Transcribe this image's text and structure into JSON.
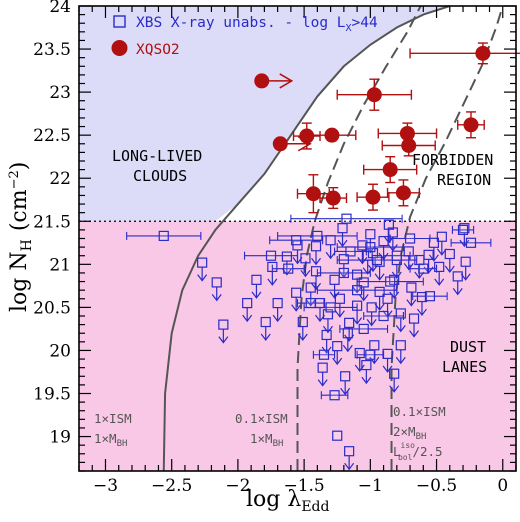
{
  "chart_data": {
    "type": "scatter",
    "xlabel": "log λ",
    "xlabel_sub": "Edd",
    "ylabel": "log N",
    "ylabel_sub": "H",
    "ylabel_unit": "(cm",
    "ylabel_unit_sup": "−2",
    "ylabel_unit_close": ")",
    "xlim": [
      -3.2,
      0.1
    ],
    "ylim": [
      18.6,
      24.0
    ],
    "x_ticks": [
      -3,
      -2.5,
      -2,
      -1.5,
      -1,
      -0.5,
      0
    ],
    "x_tick_labels": [
      "−3",
      "−2.5",
      "−2",
      "−1.5",
      "−1",
      "−0.5",
      "0"
    ],
    "y_ticks": [
      19,
      19.5,
      20,
      20.5,
      21,
      21.5,
      22,
      22.5,
      23,
      23.5,
      24
    ],
    "y_tick_labels": [
      "19",
      "19.5",
      "20",
      "20.5",
      "21",
      "21.5",
      "22",
      "22.5",
      "23",
      "23.5",
      "24"
    ],
    "threshold_nh": 21.5,
    "colors": {
      "upper_region": "#dcdcf8",
      "lower_region": "#f8c8e6",
      "xbs": "#2b2bc8",
      "xqso2": "#b01010",
      "curve": "#555555"
    },
    "legend": {
      "xbs_prefix": "XBS X-ray unabs. - log L",
      "xbs_sub": "X",
      "xbs_suffix": ">44",
      "xqso2": "XQSO2"
    },
    "regions": {
      "long_lived_1": "LONG-LIVED",
      "long_lived_2": "CLOUDS",
      "forbidden_1": "FORBIDDEN",
      "forbidden_2": "REGION",
      "dust_1": "DUST",
      "dust_2": "LANES"
    },
    "curve_labels": {
      "solid_1": "1×ISM",
      "solid_2": "1×M",
      "solid_2_sub": "BH",
      "dash1_1": "0.1×ISM",
      "dash1_2": "1×M",
      "dash1_2_sub": "BH",
      "dash2_1": "0.1×ISM",
      "dash2_2": "2×M",
      "dash2_2_sub": "BH",
      "dash2_3": "L",
      "dash2_3_sup": "iso",
      "dash2_3_sub": "bol",
      "dash2_3_suffix": "/2.5"
    },
    "curves": {
      "solid": [
        [
          -2.56,
          18.6
        ],
        [
          -2.55,
          19.5
        ],
        [
          -2.5,
          20.2
        ],
        [
          -2.42,
          20.7
        ],
        [
          -2.3,
          21.1
        ],
        [
          -2.17,
          21.4
        ],
        [
          -2.0,
          21.7
        ],
        [
          -1.8,
          22.05
        ],
        [
          -1.6,
          22.5
        ],
        [
          -1.4,
          22.95
        ],
        [
          -1.2,
          23.3
        ],
        [
          -1.0,
          23.55
        ],
        [
          -0.8,
          23.75
        ],
        [
          -0.6,
          23.9
        ],
        [
          -0.4,
          24.0
        ]
      ],
      "dashed_1": [
        [
          -1.55,
          18.6
        ],
        [
          -1.55,
          19.8
        ],
        [
          -1.52,
          20.6
        ],
        [
          -1.48,
          21.1
        ],
        [
          -1.42,
          21.5
        ],
        [
          -1.32,
          21.95
        ],
        [
          -1.2,
          22.4
        ],
        [
          -1.05,
          22.85
        ],
        [
          -0.88,
          23.3
        ],
        [
          -0.72,
          23.7
        ],
        [
          -0.62,
          24.0
        ]
      ],
      "dashed_2": [
        [
          -0.84,
          18.6
        ],
        [
          -0.84,
          19.8
        ],
        [
          -0.81,
          20.6
        ],
        [
          -0.77,
          21.1
        ],
        [
          -0.7,
          21.55
        ],
        [
          -0.58,
          22.0
        ],
        [
          -0.44,
          22.4
        ],
        [
          -0.3,
          22.85
        ],
        [
          -0.16,
          23.3
        ],
        [
          -0.05,
          23.75
        ],
        [
          0.0,
          24.0
        ]
      ]
    },
    "xqso2_points": [
      {
        "x": -1.82,
        "y": 23.13,
        "lim": "right"
      },
      {
        "x": -1.68,
        "y": 22.4,
        "lim": "right"
      },
      {
        "x": -1.48,
        "y": 22.49,
        "xerr": 0.1,
        "yerr": 0.15
      },
      {
        "x": -1.29,
        "y": 22.5,
        "xerr": 0.18,
        "yerr": 0.05
      },
      {
        "x": -0.97,
        "y": 22.97,
        "xerr": 0.28,
        "yerr": 0.18
      },
      {
        "x": -0.72,
        "y": 22.52,
        "xerr": 0.22,
        "yerr": 0.12
      },
      {
        "x": -0.71,
        "y": 22.38,
        "xerr": 0.2,
        "yerr": 0.12
      },
      {
        "x": -0.85,
        "y": 22.1,
        "xerr": 0.2,
        "yerr": 0.15
      },
      {
        "x": -0.98,
        "y": 21.78,
        "xerr": 0.12,
        "yerr": 0.15
      },
      {
        "x": -0.75,
        "y": 21.83,
        "xerr": 0.12,
        "yerr": 0.15
      },
      {
        "x": -1.43,
        "y": 21.82,
        "xerr": 0.12,
        "yerr": 0.22
      },
      {
        "x": -1.28,
        "y": 21.77,
        "xerr": 0.1,
        "yerr": 0.12
      },
      {
        "x": -0.15,
        "y": 23.45,
        "xerr": 0.55,
        "yerr": 0.12
      },
      {
        "x": -0.24,
        "y": 22.62,
        "xerr": 0.1,
        "yerr": 0.15
      }
    ],
    "xbs_points": [
      {
        "x": -2.56,
        "y": 21.33,
        "xerr": 0.28
      },
      {
        "x": -1.18,
        "y": 21.53,
        "xerr": 0.42
      },
      {
        "x": -1.56,
        "y": 21.28,
        "xerr": 0.2
      },
      {
        "x": -1.4,
        "y": 21.33,
        "xerr": 0.3
      },
      {
        "x": -0.55,
        "y": 20.63,
        "xerr": 0.13
      },
      {
        "x": -1.27,
        "y": 19.48,
        "xerr": 0.1
      },
      {
        "x": -0.24,
        "y": 21.25,
        "xerr": 0.15
      },
      {
        "x": -0.3,
        "y": 21.4,
        "xerr": 0.08
      },
      {
        "x": -1.0,
        "y": 21.2,
        "xerr": 0.25
      },
      {
        "x": -0.95,
        "y": 21.05,
        "xerr": 0.3
      },
      {
        "x": -1.2,
        "y": 20.9,
        "xerr": 0.2
      },
      {
        "x": -0.85,
        "y": 20.8,
        "xerr": 0.25
      },
      {
        "x": -1.1,
        "y": 20.7,
        "xerr": 0.3
      },
      {
        "x": -1.3,
        "y": 20.5,
        "xerr": 0.2
      },
      {
        "x": -0.9,
        "y": 20.4,
        "xerr": 0.15
      },
      {
        "x": -1.05,
        "y": 20.25,
        "xerr": 0.18
      },
      {
        "x": -1.75,
        "y": 21.1,
        "xerr": 0.2
      },
      {
        "x": -0.7,
        "y": 21.3,
        "xerr": 0.15
      },
      {
        "x": -1.25,
        "y": 19.01,
        "xerr": 0.0
      },
      {
        "x": -1.62,
        "y": 20.95,
        "xerr": 0.12
      },
      {
        "x": -1.45,
        "y": 20.55,
        "xerr": 0.1
      },
      {
        "x": -0.6,
        "y": 20.95,
        "xerr": 0.1
      },
      {
        "x": -1.0,
        "y": 19.95,
        "xerr": 0.1
      },
      {
        "x": -1.35,
        "y": 19.95,
        "xerr": 0.08
      },
      {
        "x": -1.15,
        "y": 21.15,
        "xerr": 0.12
      },
      {
        "x": -0.8,
        "y": 21.1,
        "xerr": 0.1
      }
    ],
    "xbs_upper_limits": [
      {
        "x": -1.74,
        "y": 20.97
      },
      {
        "x": -1.63,
        "y": 21.09
      },
      {
        "x": -1.49,
        "y": 21.07
      },
      {
        "x": -1.41,
        "y": 20.92
      },
      {
        "x": -1.41,
        "y": 21.21
      },
      {
        "x": -1.3,
        "y": 21.28
      },
      {
        "x": -1.21,
        "y": 21.42
      },
      {
        "x": -1.2,
        "y": 21.06
      },
      {
        "x": -1.1,
        "y": 20.88
      },
      {
        "x": -1.02,
        "y": 21.1
      },
      {
        "x": -0.98,
        "y": 21.13
      },
      {
        "x": -0.93,
        "y": 21.03
      },
      {
        "x": -0.9,
        "y": 21.27
      },
      {
        "x": -0.83,
        "y": 21.37
      },
      {
        "x": -0.8,
        "y": 21.05
      },
      {
        "x": -0.71,
        "y": 21.15
      },
      {
        "x": -0.63,
        "y": 21.05
      },
      {
        "x": -0.56,
        "y": 21.11
      },
      {
        "x": -0.48,
        "y": 20.97
      },
      {
        "x": -0.29,
        "y": 21.42
      },
      {
        "x": -0.34,
        "y": 20.86
      },
      {
        "x": -1.7,
        "y": 20.55
      },
      {
        "x": -1.56,
        "y": 20.67
      },
      {
        "x": -1.51,
        "y": 20.33
      },
      {
        "x": -1.45,
        "y": 20.73
      },
      {
        "x": -1.38,
        "y": 20.55
      },
      {
        "x": -1.32,
        "y": 20.42
      },
      {
        "x": -1.27,
        "y": 20.82
      },
      {
        "x": -1.23,
        "y": 20.6
      },
      {
        "x": -1.16,
        "y": 20.32
      },
      {
        "x": -1.1,
        "y": 20.52
      },
      {
        "x": -1.05,
        "y": 20.79
      },
      {
        "x": -0.99,
        "y": 20.5
      },
      {
        "x": -0.93,
        "y": 20.68
      },
      {
        "x": -0.87,
        "y": 20.6
      },
      {
        "x": -0.82,
        "y": 20.82
      },
      {
        "x": -0.77,
        "y": 20.43
      },
      {
        "x": -0.69,
        "y": 20.73
      },
      {
        "x": -0.61,
        "y": 20.62
      },
      {
        "x": -1.33,
        "y": 20.18
      },
      {
        "x": -1.25,
        "y": 20.05
      },
      {
        "x": -1.17,
        "y": 20.2
      },
      {
        "x": -1.08,
        "y": 19.97
      },
      {
        "x": -0.97,
        "y": 20.06
      },
      {
        "x": -0.87,
        "y": 19.96
      },
      {
        "x": -0.77,
        "y": 20.06
      },
      {
        "x": -0.67,
        "y": 20.37
      },
      {
        "x": -1.36,
        "y": 19.8
      },
      {
        "x": -1.19,
        "y": 19.7
      },
      {
        "x": -1.03,
        "y": 19.83
      },
      {
        "x": -0.82,
        "y": 19.73
      },
      {
        "x": -2.27,
        "y": 21.02
      },
      {
        "x": -2.16,
        "y": 20.79
      },
      {
        "x": -2.11,
        "y": 20.3
      },
      {
        "x": -1.93,
        "y": 20.55
      },
      {
        "x": -1.86,
        "y": 20.82
      },
      {
        "x": -1.79,
        "y": 20.33
      },
      {
        "x": -1.16,
        "y": 18.83
      },
      {
        "x": -1.06,
        "y": 21.22
      },
      {
        "x": -0.46,
        "y": 21.32
      },
      {
        "x": -0.4,
        "y": 21.12
      },
      {
        "x": -0.28,
        "y": 21.03
      },
      {
        "x": -0.52,
        "y": 21.25
      },
      {
        "x": -1.55,
        "y": 21.22
      },
      {
        "x": -1.0,
        "y": 21.35
      },
      {
        "x": -0.86,
        "y": 21.46
      }
    ]
  }
}
